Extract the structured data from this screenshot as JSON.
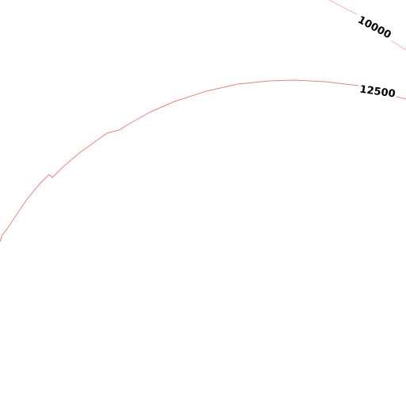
{
  "contours": [
    {
      "elevation": 10000
    },
    {
      "elevation": 12500
    }
  ]
}
